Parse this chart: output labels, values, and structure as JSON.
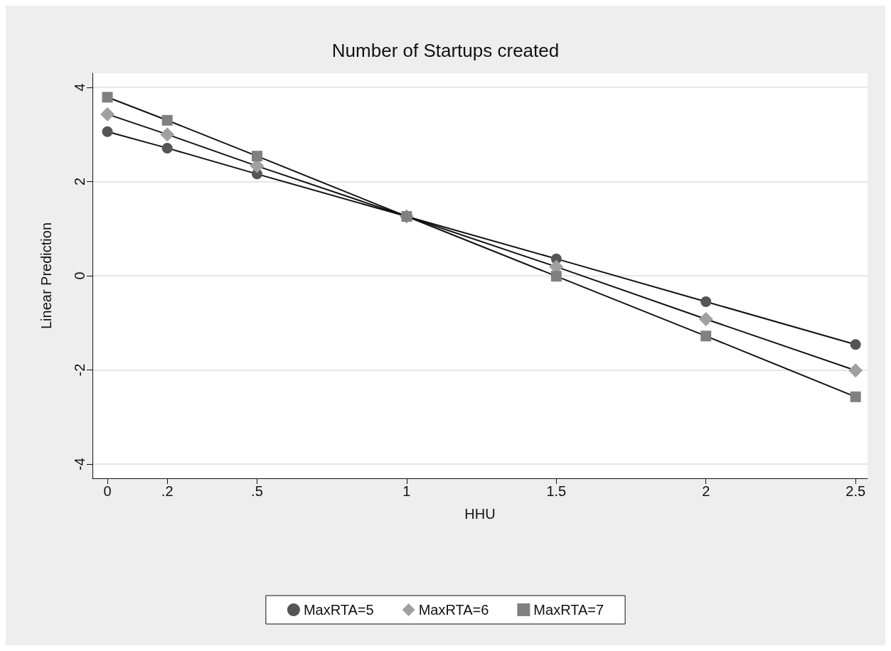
{
  "chart_data": {
    "type": "line",
    "title": "Number of Startups created",
    "xlabel": "HHU",
    "ylabel": "Linear Prediction",
    "x": [
      0,
      0.2,
      0.5,
      1,
      1.5,
      2,
      2.5
    ],
    "series": [
      {
        "name": "MaxRTA=5",
        "color": "#555555",
        "marker": "circle",
        "values": [
          3.06,
          2.71,
          2.16,
          1.26,
          0.36,
          -0.55,
          -1.46
        ]
      },
      {
        "name": "MaxRTA=6",
        "color": "#a0a0a0",
        "marker": "diamond",
        "values": [
          3.43,
          3.0,
          2.33,
          1.26,
          0.19,
          -0.92,
          -2.01
        ]
      },
      {
        "name": "MaxRTA=7",
        "color": "#808080",
        "marker": "square",
        "values": [
          3.79,
          3.3,
          2.54,
          1.26,
          -0.01,
          -1.28,
          -2.57
        ]
      }
    ],
    "xlim": [
      -0.05,
      2.54
    ],
    "xticks": [
      0,
      {
        "value": 0.2,
        "label": ".2"
      },
      {
        "value": 0.5,
        "label": ".5"
      },
      1,
      1.5,
      2,
      2.5
    ],
    "ylim": [
      -4.3,
      4.3
    ],
    "yticks": [
      -4,
      -2,
      0,
      2,
      4
    ],
    "grid": "y",
    "legend": "bottom",
    "line_style": "solid"
  }
}
